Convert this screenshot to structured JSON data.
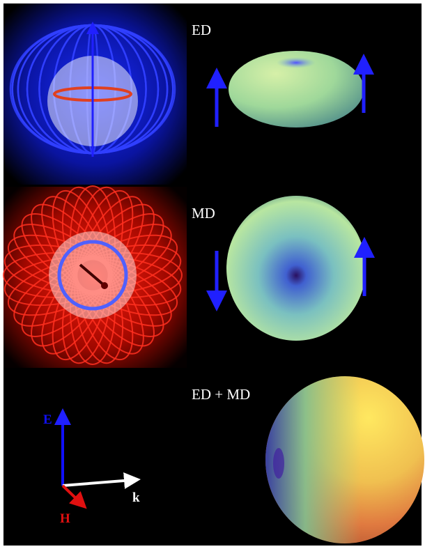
{
  "panels": [
    {
      "label": "ED"
    },
    {
      "label": "MD"
    },
    {
      "label": "ED + MD"
    }
  ],
  "axes": {
    "e_label": "E",
    "h_label": "H",
    "k_label": "k"
  }
}
